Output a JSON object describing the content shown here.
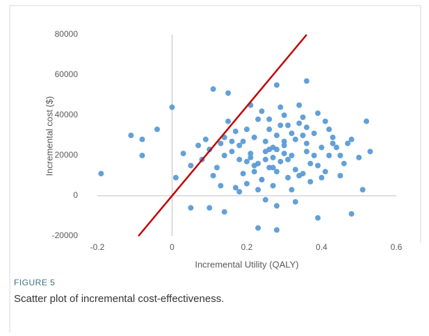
{
  "chart_data": {
    "type": "scatter",
    "figure_label": "FIGURE 5",
    "caption": "Scatter plot of incremental cost-effectiveness.",
    "xlabel": "Incremental Utility (QALY)",
    "ylabel": "Incremental cost ($)",
    "xlim": [
      -0.2,
      0.6
    ],
    "ylim": [
      -20000,
      80000
    ],
    "xticks": [
      -0.2,
      0,
      0.2,
      0.4,
      0.6
    ],
    "yticks": [
      -20000,
      0,
      20000,
      40000,
      60000,
      80000
    ],
    "grid": false,
    "color": "#5b9bd5",
    "x": [
      0.25,
      0.31,
      0.18,
      0.22,
      0.35,
      0.28,
      0.14,
      0.4,
      0.27,
      0.33,
      0.2,
      0.24,
      0.3,
      0.37,
      0.16,
      0.29,
      0.26,
      0.21,
      0.34,
      0.43,
      0.12,
      0.45,
      0.23,
      0.32,
      0.19,
      0.38,
      0.27,
      0.08,
      0.41,
      0.3,
      0.25,
      0.17,
      0.36,
      0.22,
      0.48,
      0.13,
      0.29,
      0.34,
      0.2,
      0.26,
      0.31,
      0.39,
      0.15,
      0.24,
      0.44,
      0.1,
      0.28,
      0.33,
      0.21,
      0.35,
      0.18,
      0.42,
      0.27,
      0.05,
      0.37,
      0.23,
      0.3,
      0.46,
      0.14,
      0.32,
      0.26,
      0.19,
      0.4,
      0.11,
      0.29,
      0.36,
      0.22,
      0.5,
      0.17,
      0.34,
      0.25,
      0.07,
      0.31,
      0.38,
      0.2,
      0.43,
      0.28,
      0.16,
      0.35,
      0.24,
      0.3,
      0.13,
      0.41,
      0.27,
      0.21,
      0.47,
      0.33,
      0.09,
      0.25,
      0.39,
      0.18,
      0.32,
      0.45,
      0.23,
      0.03,
      0.36,
      0.28,
      0.14,
      0.42,
      0.26,
      -0.19,
      -0.11,
      -0.08,
      -0.08,
      -0.04,
      0.11,
      0.15,
      0.28,
      0.36,
      0.23,
      0.28,
      0.0,
      0.48,
      0.52,
      0.53,
      0.05,
      0.1,
      0.51,
      0.01,
      0.39
    ],
    "values": [
      22000,
      18000,
      25000,
      15000,
      30000,
      12000,
      20000,
      24000,
      5000,
      28000,
      33000,
      8000,
      21000,
      16000,
      27000,
      35000,
      14000,
      19000,
      10000,
      26000,
      14000,
      20000,
      38000,
      3000,
      11000,
      31000,
      24000,
      18000,
      12000,
      40000,
      -2000,
      32000,
      22000,
      29000,
      28000,
      26000,
      17000,
      36000,
      6000,
      23000,
      9000,
      15000,
      37000,
      42000,
      24000,
      23000,
      30000,
      13000,
      21000,
      39000,
      2000,
      33000,
      19000,
      15000,
      7000,
      16000,
      27000,
      16000,
      29000,
      20000,
      33000,
      27000,
      9000,
      10000,
      44000,
      26000,
      12000,
      19000,
      4000,
      45000,
      27000,
      25000,
      35000,
      20000,
      17000,
      29000,
      -5000,
      22000,
      11000,
      8000,
      25000,
      5000,
      37000,
      14000,
      45000,
      26000,
      -3000,
      28000,
      18000,
      41000,
      18000,
      31000,
      10000,
      3000,
      21000,
      34000,
      23000,
      -8000,
      20000,
      38000,
      11000,
      30000,
      28000,
      20000,
      33000,
      53000,
      51000,
      55000,
      57000,
      -16000,
      -17000,
      44000,
      -9000,
      37000,
      22000,
      -6000,
      -6000,
      3000,
      9000,
      -11000
    ],
    "threshold_line": {
      "color": "#c00000",
      "x": [
        -0.09,
        0.36
      ],
      "values": [
        -20000,
        80000
      ]
    }
  }
}
